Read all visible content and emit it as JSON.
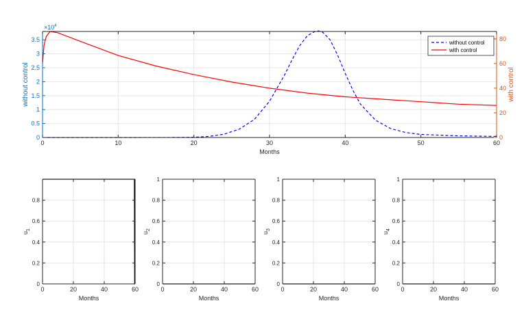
{
  "chart_data": [
    {
      "type": "line",
      "title": "",
      "xlabel": "Months",
      "xlim": [
        0,
        60
      ],
      "xticks": [
        0,
        10,
        20,
        30,
        40,
        50,
        60
      ],
      "y_left": {
        "label": "without control",
        "color": "#0072BD",
        "lim": [
          0,
          3.8
        ],
        "ticks": [
          0,
          0.5,
          1,
          1.5,
          2,
          2.5,
          3,
          3.5
        ],
        "tick_labels": [
          "0",
          "0.5",
          "1",
          "1.5",
          "2",
          "2.5",
          "3",
          "3.5"
        ],
        "exponent_base": "×10",
        "exponent_power": "4"
      },
      "y_right": {
        "label": "with control",
        "color": "#D95319",
        "lim": [
          0,
          86
        ],
        "ticks": [
          0,
          20,
          40,
          60,
          80
        ],
        "tick_labels": [
          "0",
          "20",
          "40",
          "60",
          "80"
        ]
      },
      "grid": true,
      "legend_position": "top-right",
      "series": [
        {
          "name": "without control",
          "axis": "left",
          "color": "#0000FF",
          "style": "dashed",
          "x": [
            0,
            10,
            18,
            20,
            22,
            24,
            26,
            28,
            30,
            32,
            33,
            34,
            35,
            36,
            36.5,
            37,
            38,
            39,
            40,
            41,
            42,
            44,
            46,
            48,
            50,
            55,
            60
          ],
          "y": [
            0,
            0,
            0.003,
            0.01,
            0.04,
            0.12,
            0.3,
            0.65,
            1.3,
            2.25,
            2.8,
            3.3,
            3.65,
            3.8,
            3.82,
            3.78,
            3.5,
            2.95,
            2.3,
            1.7,
            1.2,
            0.62,
            0.32,
            0.18,
            0.11,
            0.06,
            0.04
          ]
        },
        {
          "name": "with control",
          "axis": "right",
          "color": "#FF0000",
          "style": "solid",
          "x": [
            0,
            0.2,
            0.5,
            1,
            2,
            5,
            10,
            15,
            20,
            25,
            30,
            35,
            40,
            45,
            50,
            55,
            60
          ],
          "y": [
            60,
            75,
            82,
            86,
            85,
            78,
            66.5,
            58,
            51,
            45,
            40,
            36,
            33,
            31,
            29,
            27,
            26
          ]
        }
      ]
    },
    {
      "type": "line",
      "xlabel": "Months",
      "ylabel_main": "u",
      "ylabel_sub": "1",
      "xlim": [
        0,
        60
      ],
      "ylim": [
        0,
        1
      ],
      "xticks": [
        0,
        20,
        40,
        60
      ],
      "yticks": [
        0,
        0.2,
        0.4,
        0.6,
        0.8
      ],
      "grid": true,
      "series": [
        {
          "color": "#000000",
          "style": "solid",
          "x": [
            0,
            59.5,
            59.7,
            60
          ],
          "y": [
            1,
            1,
            0,
            0
          ]
        }
      ]
    },
    {
      "type": "line",
      "xlabel": "Months",
      "ylabel_main": "u",
      "ylabel_sub": "2",
      "xlim": [
        0,
        60
      ],
      "ylim": [
        0,
        1
      ],
      "xticks": [
        0,
        20,
        40,
        60
      ],
      "yticks": [
        0,
        0.2,
        0.4,
        0.6,
        0.8,
        1
      ],
      "grid": true,
      "series": [
        {
          "color": "#000000",
          "style": "solid",
          "x": [
            0,
            60
          ],
          "y": [
            0,
            0
          ]
        }
      ]
    },
    {
      "type": "line",
      "xlabel": "Months",
      "ylabel_main": "u",
      "ylabel_sub": "3",
      "xlim": [
        0,
        60
      ],
      "ylim": [
        0,
        1
      ],
      "xticks": [
        0,
        20,
        40,
        60
      ],
      "yticks": [
        0,
        0.2,
        0.4,
        0.6,
        0.8,
        1
      ],
      "grid": true,
      "series": [
        {
          "color": "#000000",
          "style": "solid",
          "x": [
            0,
            60
          ],
          "y": [
            0,
            0
          ]
        }
      ]
    },
    {
      "type": "line",
      "xlabel": "Months",
      "ylabel_main": "u",
      "ylabel_sub": "4",
      "xlim": [
        0,
        60
      ],
      "ylim": [
        0,
        1
      ],
      "xticks": [
        0,
        20,
        40,
        60
      ],
      "yticks": [
        0,
        0.2,
        0.4,
        0.6,
        0.8,
        1
      ],
      "grid": true,
      "series": [
        {
          "color": "#000000",
          "style": "solid",
          "x": [
            0,
            60
          ],
          "y": [
            0,
            0
          ]
        }
      ]
    }
  ]
}
